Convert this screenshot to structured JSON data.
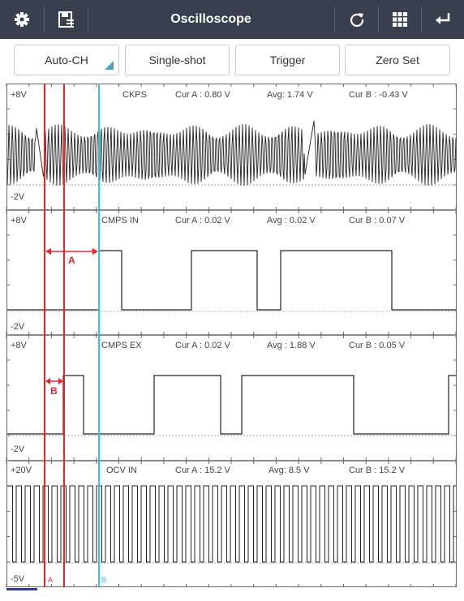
{
  "app": {
    "title": "Oscilloscope"
  },
  "toolbar": {
    "left_icons": [
      "gear-icon",
      "save-icon"
    ],
    "right_icons": [
      "refresh-icon",
      "grid-icon",
      "back-icon"
    ]
  },
  "buttons": {
    "auto_ch": "Auto-CH",
    "single_shot": "Single-shot",
    "trigger": "Trigger",
    "zero_set": "Zero Set"
  },
  "channels": [
    {
      "name": "CKPS",
      "top_label": "+8V",
      "bottom_label": "-2V",
      "cur_a": "Cur A : 0.80 V",
      "avg": "Avg: 1.74 V",
      "cur_b": "Cur B : -0.43 V"
    },
    {
      "name": "CMPS IN",
      "top_label": "+8V",
      "bottom_label": "-2V",
      "cur_a": "Cur A : 0.02 V",
      "avg": "Avg : 0.02 V",
      "cur_b": "Cur B : 0.07 V"
    },
    {
      "name": "CMPS EX",
      "top_label": "+8V",
      "bottom_label": "-2V",
      "cur_a": "Cur A : 0.02 V",
      "avg": "Avg : 1.88 V",
      "cur_b": "Cur B : 0.05 V"
    },
    {
      "name": "OCV IN",
      "top_label": "+20V",
      "bottom_label": "-5V",
      "cur_a": "Cur A : 15.2 V",
      "avg": "Avg: 8.5 V",
      "cur_b": "Cur B : 15.2 V"
    }
  ],
  "annotations": {
    "marker_a": "A",
    "marker_b": "B"
  },
  "cursors": {
    "cursor_a_label": "A",
    "cursor_b_label": "B"
  },
  "colors": {
    "topbar": "#3a3f4f",
    "cursor_a": "#e8232a",
    "cursor_b": "#35c4e0",
    "accent": "#4aa3c9"
  }
}
